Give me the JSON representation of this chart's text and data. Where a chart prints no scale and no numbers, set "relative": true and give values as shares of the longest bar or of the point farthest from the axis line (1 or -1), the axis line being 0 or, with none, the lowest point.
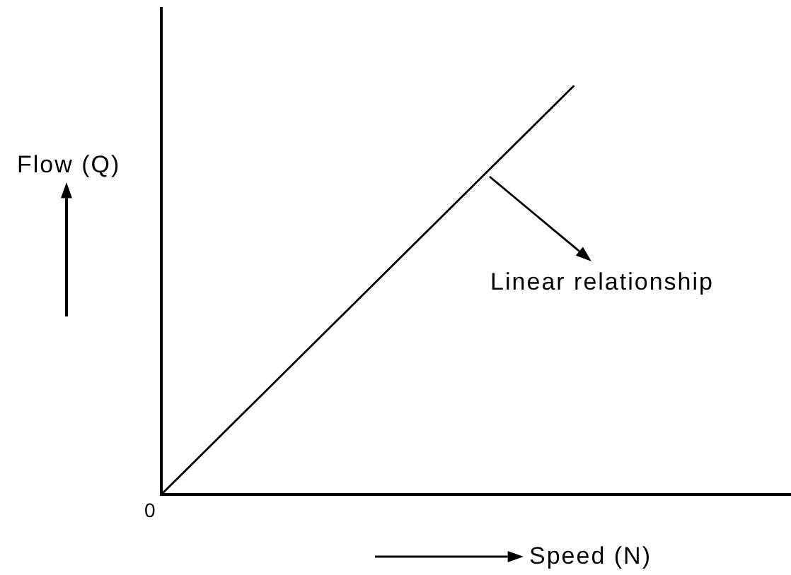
{
  "chart_data": {
    "type": "line",
    "categories": [
      null,
      null
    ],
    "values": [
      0,
      1
    ],
    "color": "#000000",
    "relative": true,
    "xlabel": "Speed (N)",
    "ylabel": "Flow (Q)",
    "annotations": [
      "0",
      "Linear relationship"
    ]
  }
}
